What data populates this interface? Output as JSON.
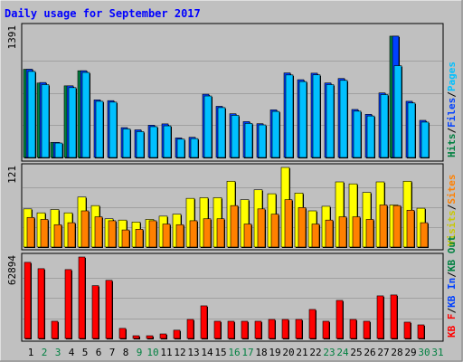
{
  "chart_data": {
    "type": "bar",
    "title": "Daily usage for September 2017",
    "categories": [
      "1",
      "2",
      "3",
      "4",
      "5",
      "6",
      "7",
      "8",
      "9",
      "10",
      "11",
      "12",
      "13",
      "14",
      "15",
      "16",
      "17",
      "18",
      "19",
      "20",
      "21",
      "22",
      "23",
      "24",
      "25",
      "26",
      "27",
      "28",
      "29",
      "30",
      "31"
    ],
    "weekend_days": [
      2,
      3,
      9,
      10,
      16,
      17,
      23,
      24,
      30,
      31
    ],
    "weekday_color": "#000000",
    "weekend_color": "#008040",
    "panels": [
      {
        "name": "top",
        "ymax_label": "1391",
        "ymax": 1391,
        "side_labels": [
          {
            "text": "Hits",
            "color": "#008040"
          },
          {
            "text": "/",
            "color": "#000000"
          },
          {
            "text": "Files",
            "color": "#0040ff"
          },
          {
            "text": "/",
            "color": "#000000"
          },
          {
            "text": "Pages",
            "color": "#00c0ff"
          }
        ],
        "series": [
          {
            "name": "Hits",
            "color": "#008040",
            "values": [
              948,
              800,
              162,
              770,
              932,
              0,
              0,
              0,
              0,
              0,
              0,
              0,
              0,
              0,
              0,
              0,
              0,
              0,
              0,
              0,
              0,
              0,
              0,
              0,
              0,
              0,
              0,
              1304,
              0,
              0,
              0
            ]
          },
          {
            "name": "Files",
            "color": "#0040ff",
            "values": [
              948,
              806,
              162,
              770,
              932,
              619,
              611,
              321,
              297,
              347,
              361,
              210,
              217,
              680,
              550,
              470,
              386,
              363,
              512,
              909,
              836,
              906,
              801,
              849,
              516,
              464,
              694,
              1304,
              604,
              399,
              0
            ]
          },
          {
            "name": "Pages",
            "color": "#00c0ff",
            "values": [
              925,
              783,
              155,
              751,
              914,
              604,
              595,
              307,
              278,
              331,
              340,
              197,
              203,
              661,
              536,
              453,
              366,
              350,
              495,
              887,
              816,
              888,
              783,
              829,
              498,
              446,
              676,
              986,
              586,
              380,
              0
            ]
          }
        ]
      },
      {
        "name": "middle",
        "ymax_label": "121",
        "ymax": 121,
        "side_labels": [
          {
            "text": "Visits",
            "color": "#c8c800"
          },
          {
            "text": "/",
            "color": "#000000"
          },
          {
            "text": "Sites",
            "color": "#ff8000"
          }
        ],
        "series": [
          {
            "name": "Visits",
            "color": "#ffff00",
            "values": [
              58,
              52,
              57,
              52,
              76,
              63,
              43,
              41,
              38,
              42,
              47,
              50,
              74,
              75,
              75,
              100,
              72,
              87,
              81,
              121,
              82,
              55,
              62,
              99,
              96,
              83,
              99,
              64,
              100,
              59,
              0
            ]
          },
          {
            "name": "Sites",
            "color": "#ff8000",
            "values": [
              45,
              42,
              34,
              37,
              55,
              46,
              40,
              26,
              27,
              40,
              35,
              34,
              40,
              43,
              43,
              63,
              35,
              58,
              50,
              72,
              60,
              35,
              41,
              46,
              46,
              42,
              64,
              63,
              56,
              37,
              0
            ]
          }
        ]
      },
      {
        "name": "bottom",
        "ymax_label": "62894",
        "ymax": 62894,
        "side_labels": [
          {
            "text": "KB F",
            "color": "#ff0000"
          },
          {
            "text": "/",
            "color": "#000000"
          },
          {
            "text": "KB In",
            "color": "#0040ff"
          },
          {
            "text": "/",
            "color": "#000000"
          },
          {
            "text": "KB Out",
            "color": "#008040"
          }
        ],
        "series": [
          {
            "name": "KB F",
            "color": "#ff0000",
            "values": [
              58800,
              53900,
              13300,
              53200,
              62894,
              40800,
              44900,
              7800,
              2100,
              2100,
              3500,
              6400,
              14700,
              25200,
              13300,
              13300,
              13300,
              13300,
              14700,
              14700,
              14700,
              22400,
              13300,
              29400,
              14700,
              13300,
              32900,
              33600,
              12600,
              10500,
              0
            ]
          }
        ]
      }
    ]
  }
}
